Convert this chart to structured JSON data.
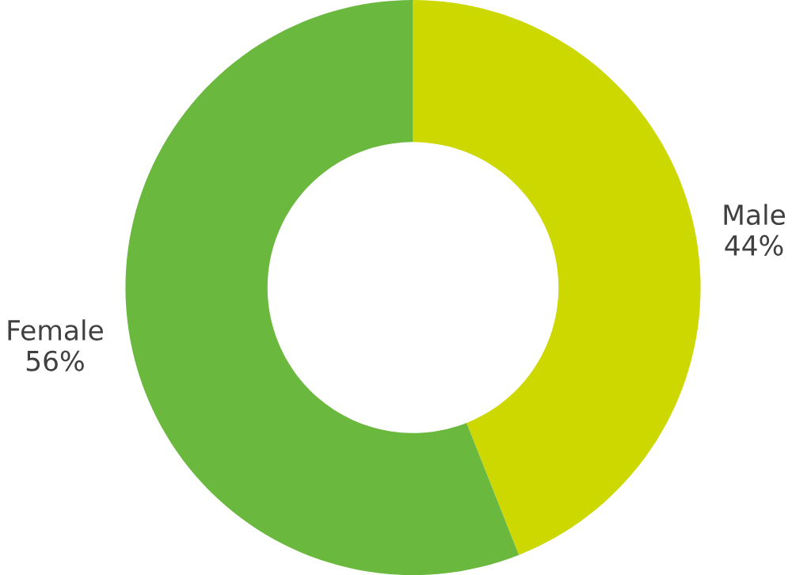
{
  "chart_data": {
    "type": "donut",
    "categories": [
      "Male",
      "Female"
    ],
    "values": [
      44,
      56
    ],
    "value_labels": [
      "44%",
      "56%"
    ],
    "colors": [
      "#cdd700",
      "#6bb83f"
    ]
  }
}
